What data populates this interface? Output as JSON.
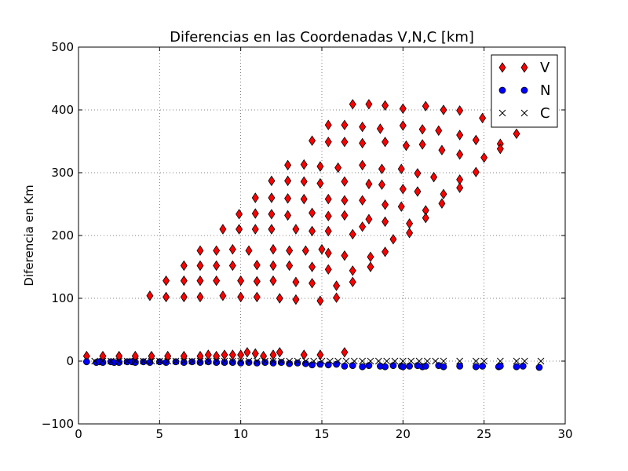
{
  "chart_data": {
    "type": "scatter",
    "title": "Diferencias en las Coordenadas V,N,C [km]",
    "xlabel": "",
    "ylabel": "Diferencia en Km",
    "xlim": [
      0,
      30
    ],
    "ylim": [
      -100,
      500
    ],
    "xticks": [
      0,
      5,
      10,
      15,
      20,
      25,
      30
    ],
    "yticks": [
      -100,
      0,
      100,
      200,
      300,
      400,
      500
    ],
    "grid": true,
    "legend_position": "top-right",
    "series": [
      {
        "name": "V",
        "color": "#ff0000",
        "marker": "diamond",
        "points": [
          [
            4.4,
            104
          ],
          [
            5.4,
            128
          ],
          [
            5.4,
            102
          ],
          [
            6.5,
            152
          ],
          [
            6.5,
            128
          ],
          [
            6.5,
            102
          ],
          [
            7.5,
            176
          ],
          [
            7.5,
            152
          ],
          [
            7.5,
            128
          ],
          [
            7.5,
            102
          ],
          [
            8.5,
            176
          ],
          [
            8.5,
            152
          ],
          [
            8.5,
            128
          ],
          [
            8.9,
            210
          ],
          [
            8.9,
            104
          ],
          [
            9.5,
            178
          ],
          [
            9.5,
            152
          ],
          [
            9.9,
            234
          ],
          [
            9.9,
            210
          ],
          [
            10.0,
            128
          ],
          [
            10.0,
            102
          ],
          [
            10.5,
            176
          ],
          [
            10.9,
            260
          ],
          [
            10.9,
            235
          ],
          [
            10.9,
            210
          ],
          [
            11.0,
            153
          ],
          [
            11.0,
            127
          ],
          [
            11.0,
            102
          ],
          [
            11.9,
            287
          ],
          [
            11.9,
            260
          ],
          [
            11.9,
            234
          ],
          [
            11.9,
            210
          ],
          [
            12.0,
            178
          ],
          [
            12.0,
            152
          ],
          [
            12.0,
            128
          ],
          [
            12.4,
            100
          ],
          [
            12.9,
            312
          ],
          [
            12.9,
            287
          ],
          [
            12.9,
            259
          ],
          [
            12.9,
            232
          ],
          [
            13.0,
            176
          ],
          [
            13.0,
            152
          ],
          [
            13.4,
            210
          ],
          [
            13.4,
            126
          ],
          [
            13.4,
            98
          ],
          [
            13.9,
            313
          ],
          [
            13.9,
            286
          ],
          [
            13.9,
            258
          ],
          [
            14.0,
            176
          ],
          [
            14.4,
            351
          ],
          [
            14.4,
            236
          ],
          [
            14.4,
            207
          ],
          [
            14.4,
            150
          ],
          [
            14.4,
            124
          ],
          [
            14.9,
            310
          ],
          [
            14.9,
            283
          ],
          [
            14.9,
            96
          ],
          [
            15.0,
            178
          ],
          [
            15.4,
            376
          ],
          [
            15.4,
            349
          ],
          [
            15.4,
            258
          ],
          [
            15.4,
            231
          ],
          [
            15.4,
            207
          ],
          [
            15.4,
            172
          ],
          [
            15.4,
            146
          ],
          [
            15.9,
            120
          ],
          [
            15.9,
            101
          ],
          [
            16.0,
            308
          ],
          [
            16.4,
            376
          ],
          [
            16.4,
            349
          ],
          [
            16.4,
            286
          ],
          [
            16.4,
            256
          ],
          [
            16.4,
            232
          ],
          [
            16.4,
            168
          ],
          [
            16.9,
            409
          ],
          [
            16.9,
            202
          ],
          [
            16.9,
            144
          ],
          [
            16.9,
            126
          ],
          [
            17.5,
            373
          ],
          [
            17.5,
            347
          ],
          [
            17.5,
            312
          ],
          [
            17.5,
            256
          ],
          [
            17.5,
            214
          ],
          [
            17.9,
            409
          ],
          [
            17.9,
            282
          ],
          [
            17.9,
            226
          ],
          [
            18.0,
            166
          ],
          [
            18.0,
            150
          ],
          [
            18.6,
            370
          ],
          [
            18.7,
            306
          ],
          [
            18.7,
            281
          ],
          [
            18.9,
            407
          ],
          [
            18.9,
            349
          ],
          [
            18.9,
            249
          ],
          [
            18.9,
            222
          ],
          [
            18.9,
            174
          ],
          [
            19.4,
            194
          ],
          [
            19.9,
            306
          ],
          [
            19.9,
            246
          ],
          [
            20.0,
            402
          ],
          [
            20.0,
            375
          ],
          [
            20.0,
            274
          ],
          [
            20.2,
            343
          ],
          [
            20.4,
            219
          ],
          [
            20.4,
            204
          ],
          [
            20.9,
            299
          ],
          [
            20.9,
            270
          ],
          [
            21.4,
            406
          ],
          [
            21.2,
            369
          ],
          [
            21.2,
            345
          ],
          [
            21.4,
            240
          ],
          [
            21.4,
            228
          ],
          [
            21.9,
            293
          ],
          [
            22.2,
            367
          ],
          [
            22.4,
            336
          ],
          [
            22.4,
            251
          ],
          [
            22.5,
            266
          ],
          [
            22.5,
            400
          ],
          [
            23.5,
            399
          ],
          [
            23.5,
            360
          ],
          [
            23.5,
            329
          ],
          [
            23.5,
            289
          ],
          [
            23.5,
            276
          ],
          [
            24.5,
            352
          ],
          [
            24.5,
            301
          ],
          [
            24.9,
            387
          ],
          [
            25.0,
            324
          ],
          [
            26.0,
            346
          ],
          [
            26.0,
            338
          ],
          [
            27.0,
            362
          ]
        ]
      },
      {
        "name": "N",
        "color": "#0000ff",
        "marker": "circle",
        "points": [
          [
            0.5,
            -1
          ],
          [
            1.1,
            -2
          ],
          [
            1.3,
            -1
          ],
          [
            1.5,
            -2
          ],
          [
            2.0,
            -1
          ],
          [
            2.2,
            -2
          ],
          [
            2.5,
            -2
          ],
          [
            3.0,
            -1
          ],
          [
            3.3,
            -1
          ],
          [
            3.5,
            -2
          ],
          [
            4.0,
            -1
          ],
          [
            4.4,
            -2
          ],
          [
            5.0,
            -1
          ],
          [
            5.4,
            -2
          ],
          [
            6.0,
            -1
          ],
          [
            6.5,
            -2
          ],
          [
            7.0,
            -1
          ],
          [
            7.5,
            -2
          ],
          [
            8.0,
            -1
          ],
          [
            8.5,
            -2
          ],
          [
            9.0,
            -2
          ],
          [
            9.5,
            -2
          ],
          [
            10.0,
            -3
          ],
          [
            10.5,
            -2
          ],
          [
            11.0,
            -3
          ],
          [
            11.5,
            -2
          ],
          [
            12.0,
            -3
          ],
          [
            12.5,
            -2
          ],
          [
            13.0,
            -4
          ],
          [
            13.5,
            -3
          ],
          [
            14.0,
            -4
          ],
          [
            14.4,
            -6
          ],
          [
            14.9,
            -5
          ],
          [
            15.4,
            -6
          ],
          [
            15.9,
            -5
          ],
          [
            16.4,
            -8
          ],
          [
            16.9,
            -7
          ],
          [
            17.5,
            -9
          ],
          [
            17.9,
            -7
          ],
          [
            18.6,
            -8
          ],
          [
            18.9,
            -9
          ],
          [
            19.4,
            -7
          ],
          [
            19.9,
            -8
          ],
          [
            20.0,
            -9
          ],
          [
            20.4,
            -8
          ],
          [
            20.9,
            -7
          ],
          [
            21.2,
            -9
          ],
          [
            21.4,
            -8
          ],
          [
            22.2,
            -7
          ],
          [
            22.5,
            -9
          ],
          [
            23.5,
            -8
          ],
          [
            24.5,
            -9
          ],
          [
            24.9,
            -8
          ],
          [
            25.9,
            -9
          ],
          [
            26.0,
            -8
          ],
          [
            27.0,
            -9
          ],
          [
            27.4,
            -8
          ],
          [
            28.4,
            -10
          ]
        ]
      },
      {
        "name": "C",
        "color": "#000000",
        "marker": "x",
        "points": [
          [
            1.0,
            0
          ],
          [
            1.5,
            0
          ],
          [
            2.0,
            0
          ],
          [
            2.5,
            0
          ],
          [
            3.0,
            0
          ],
          [
            3.5,
            0
          ],
          [
            4.0,
            0
          ],
          [
            4.5,
            0
          ],
          [
            5.0,
            0
          ],
          [
            5.5,
            0
          ],
          [
            6.0,
            0
          ],
          [
            6.5,
            0
          ],
          [
            7.0,
            0
          ],
          [
            7.5,
            0
          ],
          [
            8.0,
            0
          ],
          [
            8.5,
            0
          ],
          [
            9.0,
            0
          ],
          [
            9.5,
            0
          ],
          [
            10.0,
            0
          ],
          [
            10.5,
            0
          ],
          [
            11.0,
            0
          ],
          [
            11.5,
            0
          ],
          [
            12.0,
            0
          ],
          [
            12.5,
            0
          ],
          [
            13.0,
            0
          ],
          [
            13.5,
            0
          ],
          [
            14.0,
            0
          ],
          [
            14.5,
            0
          ],
          [
            15.0,
            0
          ],
          [
            15.5,
            0
          ],
          [
            16.0,
            0
          ],
          [
            16.5,
            0
          ],
          [
            17.0,
            0
          ],
          [
            17.5,
            0
          ],
          [
            18.0,
            0
          ],
          [
            18.5,
            0
          ],
          [
            19.0,
            0
          ],
          [
            19.5,
            0
          ],
          [
            20.0,
            0
          ],
          [
            20.5,
            0
          ],
          [
            21.0,
            0
          ],
          [
            21.5,
            0
          ],
          [
            22.0,
            0
          ],
          [
            22.5,
            0
          ],
          [
            23.5,
            0
          ],
          [
            24.5,
            0
          ],
          [
            25.0,
            0
          ],
          [
            26.0,
            0
          ],
          [
            27.0,
            0
          ],
          [
            27.5,
            0
          ],
          [
            28.5,
            0
          ]
        ]
      }
    ],
    "extra_v_small": [
      [
        0.5,
        8
      ],
      [
        1.5,
        8
      ],
      [
        2.5,
        8
      ],
      [
        3.5,
        8
      ],
      [
        4.5,
        8
      ],
      [
        5.5,
        8
      ],
      [
        6.5,
        8
      ],
      [
        7.5,
        8
      ],
      [
        8.0,
        10
      ],
      [
        8.5,
        8
      ],
      [
        9.0,
        10
      ],
      [
        9.5,
        10
      ],
      [
        10.0,
        10
      ],
      [
        10.4,
        14
      ],
      [
        10.9,
        12
      ],
      [
        11.4,
        8
      ],
      [
        12.0,
        10
      ],
      [
        12.4,
        14
      ],
      [
        13.9,
        10
      ],
      [
        14.9,
        10
      ],
      [
        16.4,
        14
      ]
    ]
  }
}
